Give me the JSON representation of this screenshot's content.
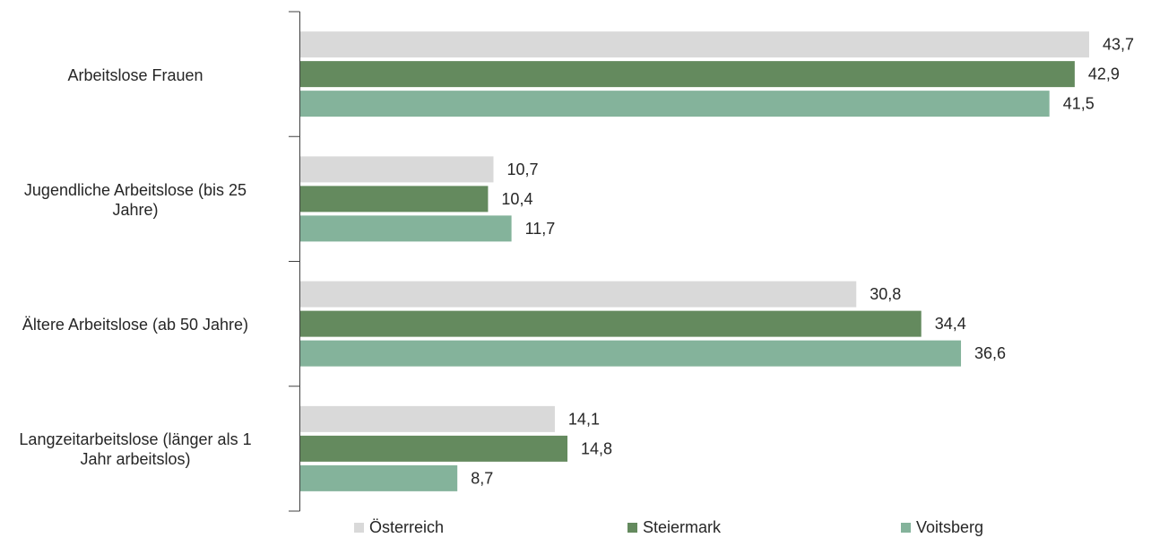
{
  "chart_data": {
    "type": "bar",
    "orientation": "horizontal",
    "categories": [
      "Arbeitslose Frauen",
      "Jugendliche Arbeitslose (bis 25 Jahre)",
      "Ältere Arbeitslose (ab 50 Jahre)",
      "Langzeitarbeitslose (länger als 1 Jahr arbeitslos)"
    ],
    "category_lines": [
      [
        "Arbeitslose Frauen"
      ],
      [
        "Jugendliche Arbeitslose (bis 25",
        "Jahre)"
      ],
      [
        "Ältere Arbeitslose (ab 50 Jahre)"
      ],
      [
        "Langzeitarbeitslose (länger als 1",
        "Jahr arbeitslos)"
      ]
    ],
    "series": [
      {
        "name": "Österreich",
        "color": "#d9d9d9",
        "values": [
          43.7,
          10.7,
          30.8,
          14.1
        ],
        "labels": [
          "43,7",
          "10,7",
          "30,8",
          "14,1"
        ]
      },
      {
        "name": "Steiermark",
        "color": "#648a5e",
        "values": [
          42.9,
          10.4,
          34.4,
          14.8
        ],
        "labels": [
          "42,9",
          "10,4",
          "34,4",
          "14,8"
        ]
      },
      {
        "name": "Voitsberg",
        "color": "#84b39b",
        "values": [
          41.5,
          11.7,
          36.6,
          8.7
        ],
        "labels": [
          "41,5",
          "11,7",
          "36,6",
          "8,7"
        ]
      }
    ],
    "xlim": [
      0,
      43.7
    ],
    "legend_position": "bottom",
    "grid": false
  }
}
